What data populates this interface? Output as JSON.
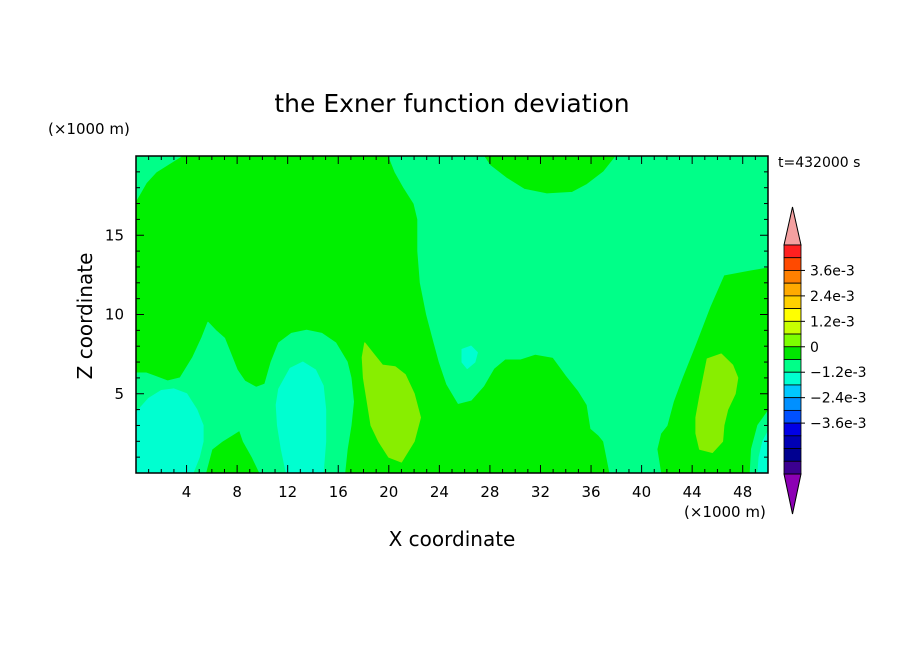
{
  "chart_data": {
    "type": "heatmap",
    "title": "the Exner function deviation",
    "xlabel": "X coordinate",
    "ylabel": "Z coordinate",
    "x_unit": "(×1000 m)",
    "y_unit": "(×1000 m)",
    "time_label": "t=432000 s",
    "xlim": [
      0,
      50
    ],
    "ylim": [
      0,
      20
    ],
    "x_ticks": [
      4,
      8,
      12,
      16,
      20,
      24,
      28,
      32,
      36,
      40,
      44,
      48
    ],
    "y_ticks": [
      5,
      10,
      15
    ],
    "colorbar": {
      "labels": [
        "3.6e-3",
        "2.4e-3",
        "1.2e-3",
        "0",
        "-1.2e-3",
        "-2.4e-3",
        "-3.6e-3"
      ],
      "label_levels": [
        0.0036,
        0.0024,
        0.0012,
        0,
        -0.0012,
        -0.0024,
        -0.0036
      ],
      "levels_high_to_low": [
        0.0042,
        0.0036,
        0.003,
        0.0024,
        0.0018,
        0.0012,
        0.0006,
        0,
        -0.0006,
        -0.0012,
        -0.0018,
        -0.0024,
        -0.003,
        -0.0036,
        -0.0042
      ],
      "colors_high_to_low": [
        "#ff2020",
        "#ff4a00",
        "#ff8000",
        "#ffaa00",
        "#ffd000",
        "#ffff00",
        "#c8ff00",
        "#7cff00",
        "#00e600",
        "#00ff88",
        "#00ffd0",
        "#00c8ff",
        "#0090ff",
        "#0050ff",
        "#0000e6",
        "#0000b4",
        "#000090",
        "#3c0090"
      ],
      "over_color": "#f4a0a0",
      "under_color": "#8c00b4"
    },
    "regions": [
      {
        "name": "positive-mid",
        "color": "#88ee00",
        "points": [
          [
            18.1,
            8.2
          ],
          [
            18.8,
            7.5
          ],
          [
            19.5,
            6.8
          ],
          [
            20.5,
            6.7
          ],
          [
            21.3,
            6.2
          ],
          [
            22.0,
            5.0
          ],
          [
            22.5,
            3.5
          ],
          [
            22.0,
            2.0
          ],
          [
            21.0,
            0.7
          ],
          [
            20.0,
            1.0
          ],
          [
            19.2,
            2.0
          ],
          [
            18.6,
            3.0
          ],
          [
            18.3,
            4.5
          ],
          [
            18.0,
            6.0
          ],
          [
            17.9,
            7.3
          ]
        ]
      },
      {
        "name": "positive-right",
        "color": "#88ee00",
        "points": [
          [
            45.2,
            7.2
          ],
          [
            46.3,
            7.5
          ],
          [
            47.2,
            6.8
          ],
          [
            47.6,
            6.0
          ],
          [
            47.4,
            5.0
          ],
          [
            46.8,
            4.0
          ],
          [
            46.5,
            3.0
          ],
          [
            46.4,
            2.0
          ],
          [
            45.6,
            1.3
          ],
          [
            44.6,
            1.5
          ],
          [
            44.3,
            2.5
          ],
          [
            44.3,
            3.5
          ],
          [
            44.6,
            4.8
          ],
          [
            44.9,
            6.0
          ]
        ]
      },
      {
        "name": "neutral-top-center",
        "color": "#00ff88",
        "points": [
          [
            20,
            20
          ],
          [
            20.5,
            19.0
          ],
          [
            21.2,
            18.0
          ],
          [
            22.0,
            17.0
          ],
          [
            22.3,
            16.0
          ],
          [
            22.3,
            14.0
          ],
          [
            22.5,
            12.0
          ],
          [
            23.0,
            10.0
          ],
          [
            23.5,
            8.5
          ],
          [
            24.0,
            7.0
          ],
          [
            24.6,
            5.6
          ],
          [
            25.5,
            4.4
          ],
          [
            26.5,
            4.6
          ],
          [
            27.5,
            5.5
          ],
          [
            28.3,
            6.6
          ],
          [
            29.2,
            7.2
          ],
          [
            30.4,
            7.2
          ],
          [
            31.6,
            7.5
          ],
          [
            33.0,
            7.3
          ],
          [
            34.0,
            6.2
          ],
          [
            35.0,
            5.2
          ],
          [
            35.7,
            4.3
          ],
          [
            36.0,
            2.8
          ],
          [
            36.6,
            2.4
          ],
          [
            37.0,
            2.0
          ],
          [
            37.5,
            0
          ],
          [
            41.5,
            0
          ],
          [
            41.2,
            1.5
          ],
          [
            41.5,
            2.5
          ],
          [
            42.0,
            3.0
          ],
          [
            42.5,
            4.5
          ],
          [
            43.2,
            6.0
          ],
          [
            44.2,
            8.0
          ],
          [
            45.4,
            10.5
          ],
          [
            46.5,
            12.5
          ],
          [
            48.5,
            12.8
          ],
          [
            50,
            13.0
          ],
          [
            50,
            20
          ],
          [
            38.0,
            20
          ],
          [
            37.0,
            19.0
          ],
          [
            35.7,
            18.2
          ],
          [
            34.5,
            17.7
          ],
          [
            32.5,
            17.6
          ],
          [
            30.7,
            17.9
          ],
          [
            29.3,
            18.6
          ],
          [
            28.0,
            19.4
          ],
          [
            27.5,
            20
          ]
        ]
      },
      {
        "name": "neutral-left-band",
        "color": "#00ff88",
        "points": [
          [
            0,
            6.3
          ],
          [
            0.8,
            6.3
          ],
          [
            1.5,
            6.1
          ],
          [
            2.5,
            5.8
          ],
          [
            3.5,
            6.0
          ],
          [
            4.5,
            7.3
          ],
          [
            5.2,
            8.5
          ],
          [
            5.7,
            9.5
          ],
          [
            6.3,
            9.0
          ],
          [
            7.0,
            8.5
          ],
          [
            7.5,
            7.5
          ],
          [
            8.0,
            6.5
          ],
          [
            8.6,
            5.8
          ],
          [
            9.5,
            5.4
          ],
          [
            10.2,
            5.6
          ],
          [
            10.7,
            7.0
          ],
          [
            11.3,
            8.2
          ],
          [
            12.3,
            8.8
          ],
          [
            13.5,
            9.0
          ],
          [
            14.7,
            8.8
          ],
          [
            15.8,
            8.2
          ],
          [
            16.7,
            7.0
          ],
          [
            17.0,
            6.0
          ],
          [
            17.2,
            4.5
          ],
          [
            17.0,
            3.0
          ],
          [
            16.7,
            1.5
          ],
          [
            16.5,
            0
          ],
          [
            9.8,
            0
          ],
          [
            9.2,
            1.0
          ],
          [
            8.5,
            2.0
          ],
          [
            8.2,
            2.7
          ],
          [
            7.6,
            2.4
          ],
          [
            6.8,
            2.0
          ],
          [
            6.0,
            1.5
          ],
          [
            5.5,
            0
          ],
          [
            0,
            0
          ]
        ]
      },
      {
        "name": "neutral-left-top",
        "color": "#00ff88",
        "points": [
          [
            0,
            20
          ],
          [
            3.6,
            20
          ],
          [
            2.6,
            19.5
          ],
          [
            1.6,
            19.0
          ],
          [
            0.8,
            18.3
          ],
          [
            0.3,
            17.6
          ],
          [
            0,
            17.2
          ]
        ]
      },
      {
        "name": "neutral-far-right",
        "color": "#00ff88",
        "points": [
          [
            50,
            0
          ],
          [
            48.6,
            0
          ],
          [
            48.7,
            1.5
          ],
          [
            49.2,
            3.0
          ],
          [
            50,
            3.9
          ]
        ]
      },
      {
        "name": "negative-left",
        "color": "#00ffd0",
        "points": [
          [
            0,
            3.8
          ],
          [
            1.0,
            4.7
          ],
          [
            2.0,
            5.2
          ],
          [
            3.0,
            5.3
          ],
          [
            4.0,
            5.0
          ],
          [
            4.8,
            4.0
          ],
          [
            5.3,
            3.0
          ],
          [
            5.3,
            2.0
          ],
          [
            5.0,
            1.0
          ],
          [
            4.5,
            0
          ],
          [
            0,
            0
          ]
        ]
      },
      {
        "name": "negative-center",
        "color": "#00ffd0",
        "points": [
          [
            11.3,
            5.3
          ],
          [
            12.2,
            6.6
          ],
          [
            13.2,
            7.0
          ],
          [
            14.2,
            6.5
          ],
          [
            14.8,
            5.5
          ],
          [
            15.0,
            4.0
          ],
          [
            15.0,
            2.0
          ],
          [
            14.8,
            0
          ],
          [
            11.9,
            0
          ],
          [
            11.5,
            1.5
          ],
          [
            11.2,
            3.0
          ],
          [
            11.1,
            4.3
          ]
        ]
      },
      {
        "name": "negative-small",
        "color": "#00ffd0",
        "points": [
          [
            25.8,
            7.8
          ],
          [
            26.5,
            8.0
          ],
          [
            27.0,
            7.6
          ],
          [
            26.8,
            7.0
          ],
          [
            26.2,
            6.6
          ],
          [
            25.8,
            7.0
          ]
        ]
      },
      {
        "name": "negative-right-edge",
        "color": "#00ffd0",
        "points": [
          [
            50,
            0
          ],
          [
            49.2,
            0
          ],
          [
            49.3,
            1.0
          ],
          [
            49.6,
            2.0
          ],
          [
            50,
            2.6
          ]
        ]
      }
    ]
  }
}
